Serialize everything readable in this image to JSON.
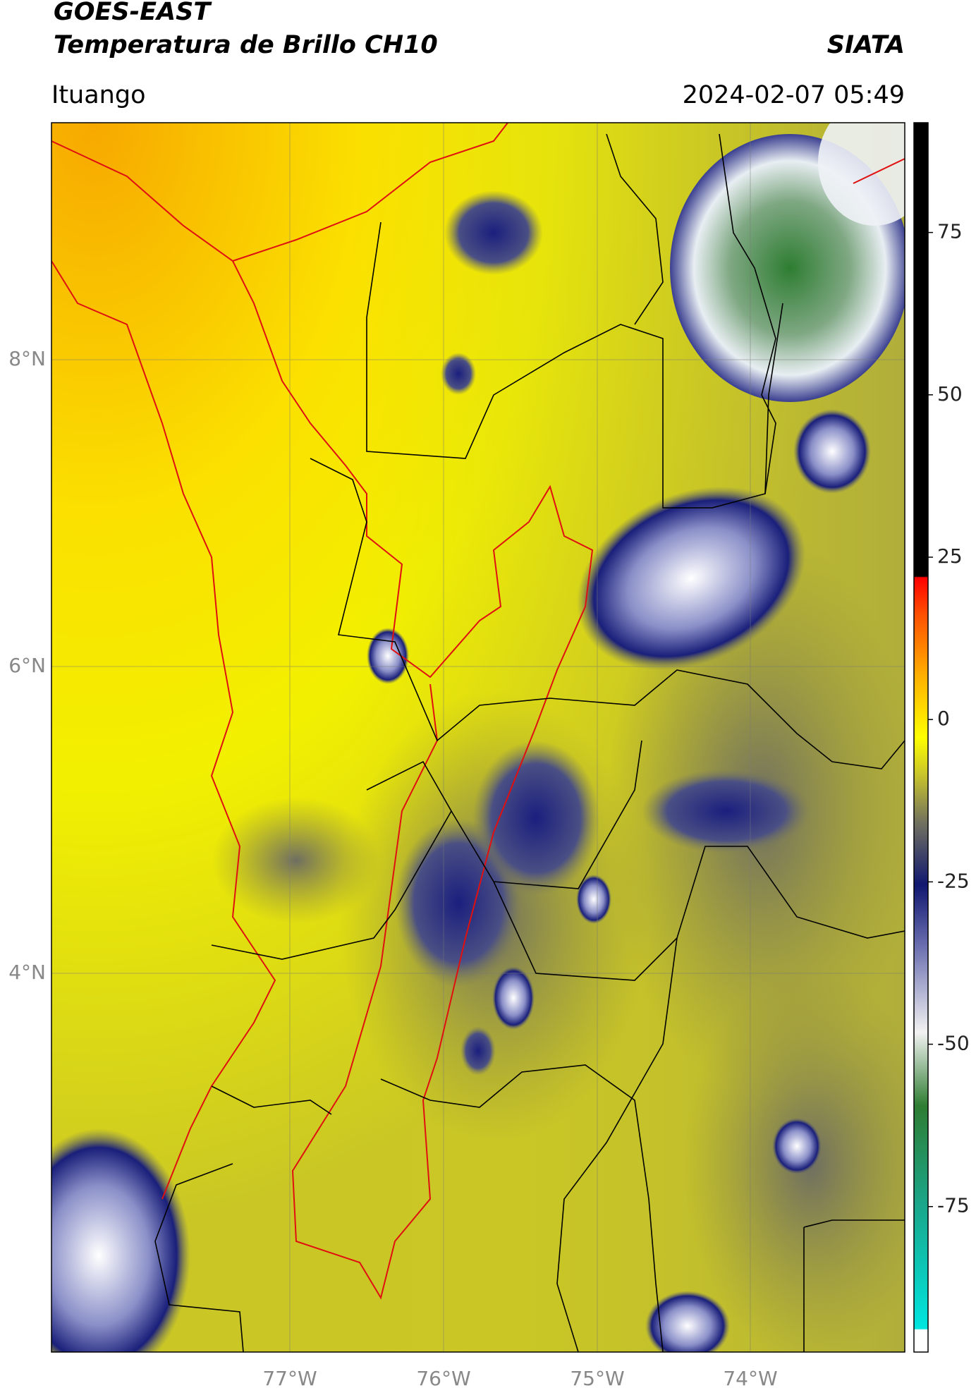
{
  "header": {
    "title_line1": "GOES-EAST",
    "title_line2": "Temperatura de Brillo CH10",
    "brand": "SIATA",
    "location": "Ituango",
    "datetime": "2024-02-07 05:49"
  },
  "map": {
    "lat_labels": [
      "8°N",
      "6°N",
      "4°N"
    ],
    "lon_labels": [
      "77°W",
      "76°W",
      "75°W",
      "74°W"
    ]
  },
  "colorbar": {
    "lim": [
      -97.4,
      91.9
    ],
    "ticks": [
      75,
      50,
      25,
      0,
      -25,
      -50,
      -75
    ]
  }
}
